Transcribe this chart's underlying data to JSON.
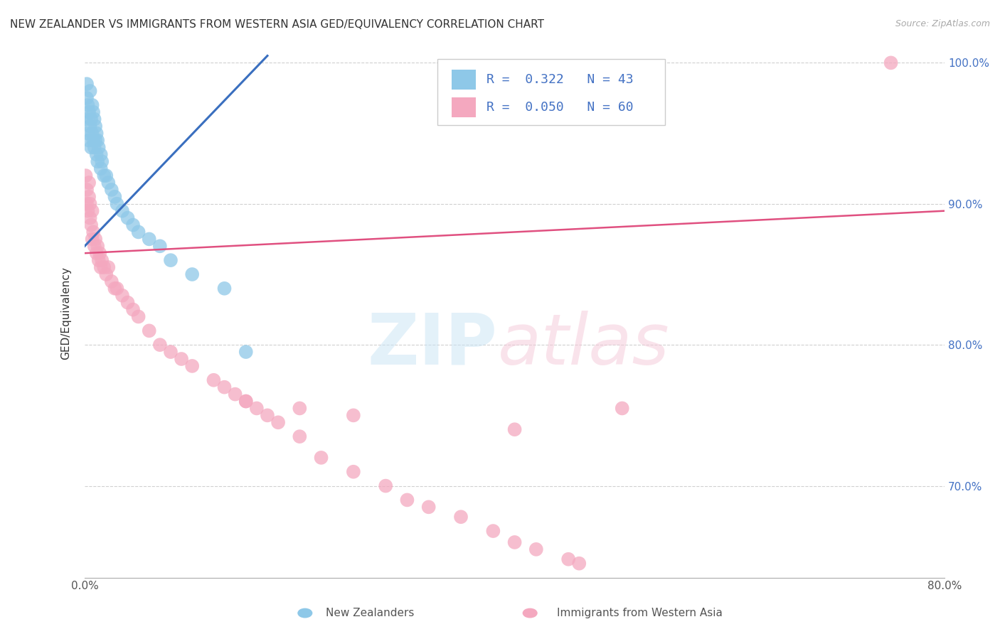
{
  "title": "NEW ZEALANDER VS IMMIGRANTS FROM WESTERN ASIA GED/EQUIVALENCY CORRELATION CHART",
  "source": "Source: ZipAtlas.com",
  "ylabel": "GED/Equivalency",
  "legend_label1": "New Zealanders",
  "legend_label2": "Immigrants from Western Asia",
  "R1": 0.322,
  "N1": 43,
  "R2": 0.05,
  "N2": 60,
  "color1": "#8ec8e8",
  "color2": "#f4a8bf",
  "line_color1": "#3a6fbf",
  "line_color2": "#e05080",
  "xlim": [
    0.0,
    0.8
  ],
  "ylim": [
    0.635,
    1.01
  ],
  "xticks": [
    0.0,
    0.1,
    0.2,
    0.3,
    0.4,
    0.5,
    0.6,
    0.7,
    0.8
  ],
  "ytick_labels": [
    "100.0%",
    "90.0%",
    "80.0%",
    "70.0%"
  ],
  "ytick_vals": [
    1.0,
    0.9,
    0.8,
    0.7
  ],
  "nz_x": [
    0.001,
    0.002,
    0.002,
    0.003,
    0.003,
    0.004,
    0.004,
    0.005,
    0.005,
    0.006,
    0.006,
    0.007,
    0.007,
    0.008,
    0.008,
    0.009,
    0.009,
    0.01,
    0.01,
    0.011,
    0.011,
    0.012,
    0.012,
    0.013,
    0.015,
    0.015,
    0.016,
    0.018,
    0.02,
    0.022,
    0.025,
    0.028,
    0.03,
    0.035,
    0.04,
    0.045,
    0.05,
    0.06,
    0.07,
    0.08,
    0.1,
    0.13,
    0.15
  ],
  "nz_y": [
    0.96,
    0.975,
    0.985,
    0.97,
    0.95,
    0.965,
    0.945,
    0.98,
    0.955,
    0.96,
    0.94,
    0.97,
    0.95,
    0.965,
    0.945,
    0.96,
    0.94,
    0.955,
    0.945,
    0.95,
    0.935,
    0.945,
    0.93,
    0.94,
    0.935,
    0.925,
    0.93,
    0.92,
    0.92,
    0.915,
    0.91,
    0.905,
    0.9,
    0.895,
    0.89,
    0.885,
    0.88,
    0.875,
    0.87,
    0.86,
    0.85,
    0.84,
    0.795
  ],
  "wa_x": [
    0.001,
    0.002,
    0.002,
    0.003,
    0.004,
    0.004,
    0.005,
    0.005,
    0.006,
    0.007,
    0.007,
    0.008,
    0.009,
    0.01,
    0.011,
    0.012,
    0.013,
    0.014,
    0.015,
    0.016,
    0.018,
    0.02,
    0.022,
    0.025,
    0.028,
    0.03,
    0.035,
    0.04,
    0.045,
    0.05,
    0.06,
    0.07,
    0.08,
    0.09,
    0.1,
    0.12,
    0.13,
    0.14,
    0.15,
    0.16,
    0.17,
    0.18,
    0.2,
    0.22,
    0.25,
    0.28,
    0.3,
    0.32,
    0.35,
    0.38,
    0.4,
    0.42,
    0.45,
    0.46,
    0.5,
    0.4,
    0.15,
    0.2,
    0.25,
    0.75
  ],
  "wa_y": [
    0.92,
    0.9,
    0.91,
    0.895,
    0.905,
    0.915,
    0.89,
    0.9,
    0.885,
    0.895,
    0.875,
    0.88,
    0.87,
    0.875,
    0.865,
    0.87,
    0.86,
    0.865,
    0.855,
    0.86,
    0.855,
    0.85,
    0.855,
    0.845,
    0.84,
    0.84,
    0.835,
    0.83,
    0.825,
    0.82,
    0.81,
    0.8,
    0.795,
    0.79,
    0.785,
    0.775,
    0.77,
    0.765,
    0.76,
    0.755,
    0.75,
    0.745,
    0.735,
    0.72,
    0.71,
    0.7,
    0.69,
    0.685,
    0.678,
    0.668,
    0.66,
    0.655,
    0.648,
    0.645,
    0.755,
    0.74,
    0.76,
    0.755,
    0.75,
    1.0
  ],
  "blue_line_x0": 0.0,
  "blue_line_y0": 0.87,
  "blue_line_x1": 0.17,
  "blue_line_y1": 1.005,
  "pink_line_x0": 0.0,
  "pink_line_y0": 0.865,
  "pink_line_x1": 0.8,
  "pink_line_y1": 0.895
}
